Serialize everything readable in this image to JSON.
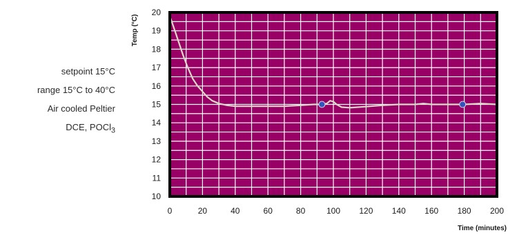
{
  "notes": {
    "line1": "setpoint 15°C",
    "line2": "range 15°C to 40°C",
    "line3": "Air cooled Peltier",
    "line4_main": "DCE, POCl",
    "line4_sub": "3"
  },
  "chart_data": {
    "type": "line",
    "title": "",
    "xlabel": "Time (minutes)",
    "ylabel": "Temp (°C)",
    "xlim": [
      0,
      200
    ],
    "ylim": [
      10,
      20
    ],
    "x_ticks": [
      0,
      20,
      40,
      60,
      80,
      100,
      120,
      140,
      160,
      180,
      200
    ],
    "y_ticks": [
      10,
      11,
      12,
      13,
      14,
      15,
      16,
      17,
      18,
      19,
      20
    ],
    "grid": true,
    "legend": "none",
    "colors": {
      "plot_background": "#990066",
      "grid_lines": "#ffffff",
      "series_line": "#d9d9c8",
      "frame": "#000000",
      "markers": "#3355bb"
    },
    "series": [
      {
        "x": [
          0,
          2,
          5,
          8,
          11,
          14,
          17,
          20,
          23,
          26,
          30,
          35,
          40,
          50,
          60,
          70,
          80,
          88,
          93,
          96,
          98,
          100,
          102,
          105,
          110,
          120,
          130,
          140,
          150,
          155,
          160,
          170,
          180,
          190,
          200
        ],
        "y": [
          19.8,
          19.3,
          18.5,
          17.7,
          17.0,
          16.4,
          16.0,
          15.7,
          15.4,
          15.2,
          15.05,
          14.95,
          14.9,
          14.9,
          14.9,
          14.9,
          14.95,
          15.0,
          15.0,
          15.05,
          15.2,
          15.15,
          15.0,
          14.85,
          14.82,
          14.88,
          14.95,
          15.0,
          15.0,
          15.05,
          15.0,
          15.0,
          15.0,
          15.05,
          15.0
        ]
      }
    ],
    "markers": [
      {
        "x": 93,
        "y": 15.0
      },
      {
        "x": 179,
        "y": 15.0
      }
    ]
  }
}
